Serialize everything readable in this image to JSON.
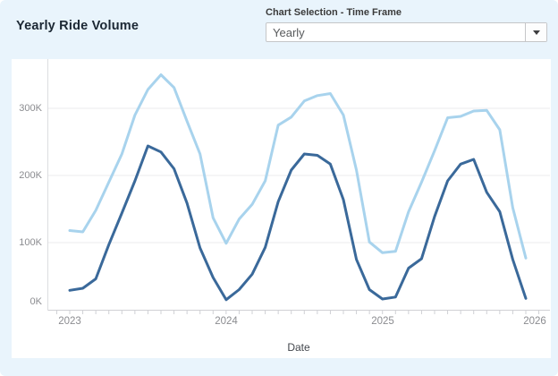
{
  "header": {
    "title": "Yearly Ride Volume",
    "parameter": {
      "label": "Chart Selection - Time Frame",
      "value": "Yearly",
      "icon": "caret-down-icon"
    }
  },
  "colors": {
    "background": "#e9f4fc",
    "card": "#ffffff",
    "grid": "#ebebee",
    "axis": "#d0d1d5",
    "tick_label": "#8b8c90"
  },
  "chart_data": {
    "type": "line",
    "title": "Yearly Ride Volume",
    "xlabel": "Date",
    "ylabel": "",
    "x_interval": "monthly",
    "x_range": [
      "2023-01",
      "2025-12"
    ],
    "x_tick_labels": [
      "2023",
      "2024",
      "2025",
      "2026"
    ],
    "y_tick_values": [
      0,
      100,
      200,
      300
    ],
    "y_tick_labels": [
      "0K",
      "100K",
      "200K",
      "300K"
    ],
    "values_unit": "thousands of rides",
    "ylim": [
      0,
      370
    ],
    "grid": "horizontal",
    "legend": "none",
    "series": [
      {
        "name": "light-blue-line",
        "color": "#a8d3ed",
        "values": [
          118,
          116,
          148,
          190,
          232,
          290,
          328,
          350,
          331,
          281,
          232,
          137,
          99,
          135,
          157,
          192,
          275,
          287,
          311,
          319,
          322,
          290,
          208,
          101,
          85,
          87,
          146,
          190,
          237,
          286,
          288,
          296,
          297,
          268,
          152,
          77
        ]
      },
      {
        "name": "dark-blue-line",
        "color": "#3a699a",
        "values": [
          29,
          32,
          46,
          97,
          144,
          192,
          244,
          235,
          210,
          159,
          92,
          48,
          15,
          30,
          53,
          93,
          161,
          208,
          232,
          230,
          217,
          164,
          75,
          30,
          16,
          19,
          62,
          76,
          139,
          192,
          217,
          224,
          175,
          146,
          75,
          17
        ]
      }
    ]
  }
}
